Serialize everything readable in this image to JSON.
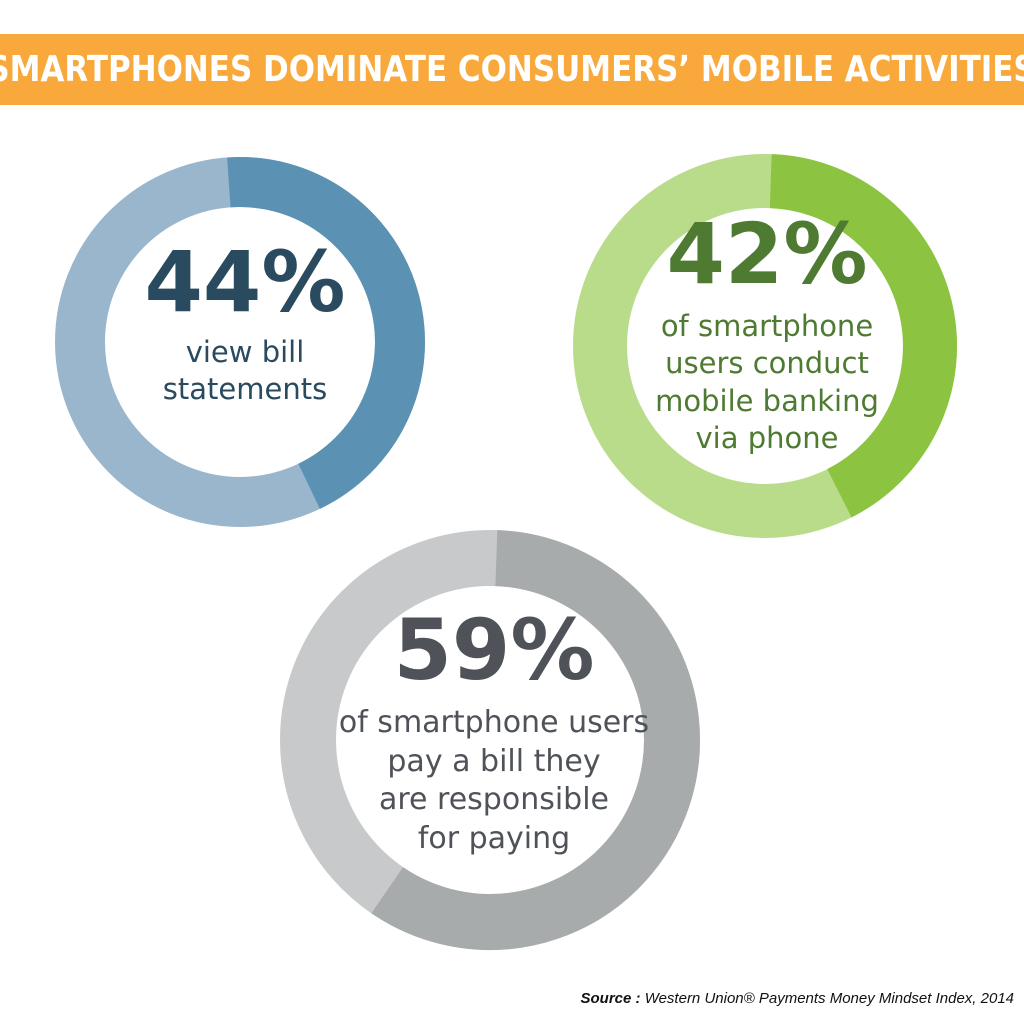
{
  "title": "SMARTPHONES DOMINATE CONSUMERS’ MOBILE ACTIVITIES",
  "colors": {
    "banner": "#f9a93b",
    "blue_dark": "#5b92b4",
    "blue_light": "#9ab6cd",
    "blue_text": "#2a4b5f",
    "green_dark": "#8cc442",
    "green_light": "#b9dc8b",
    "green_text": "#4e7a31",
    "gray_dark": "#a8abac",
    "gray_light": "#c8c9ca",
    "gray_text": "#4f5359"
  },
  "chart_data": [
    {
      "type": "pie",
      "variant": "donut",
      "value_percent": 44,
      "label": "44%",
      "caption": [
        "view bill",
        "statements"
      ]
    },
    {
      "type": "pie",
      "variant": "donut",
      "value_percent": 42,
      "label": "42%",
      "caption": [
        "of smartphone",
        "users conduct",
        "mobile banking",
        "via phone"
      ]
    },
    {
      "type": "pie",
      "variant": "donut",
      "value_percent": 59,
      "label": "59%",
      "caption": [
        "of smartphone users",
        "pay a bill they",
        "are responsible",
        "for paying"
      ]
    }
  ],
  "source": {
    "label": "Source :",
    "text": "Western Union® Payments Money Mindset Index, 2014"
  }
}
